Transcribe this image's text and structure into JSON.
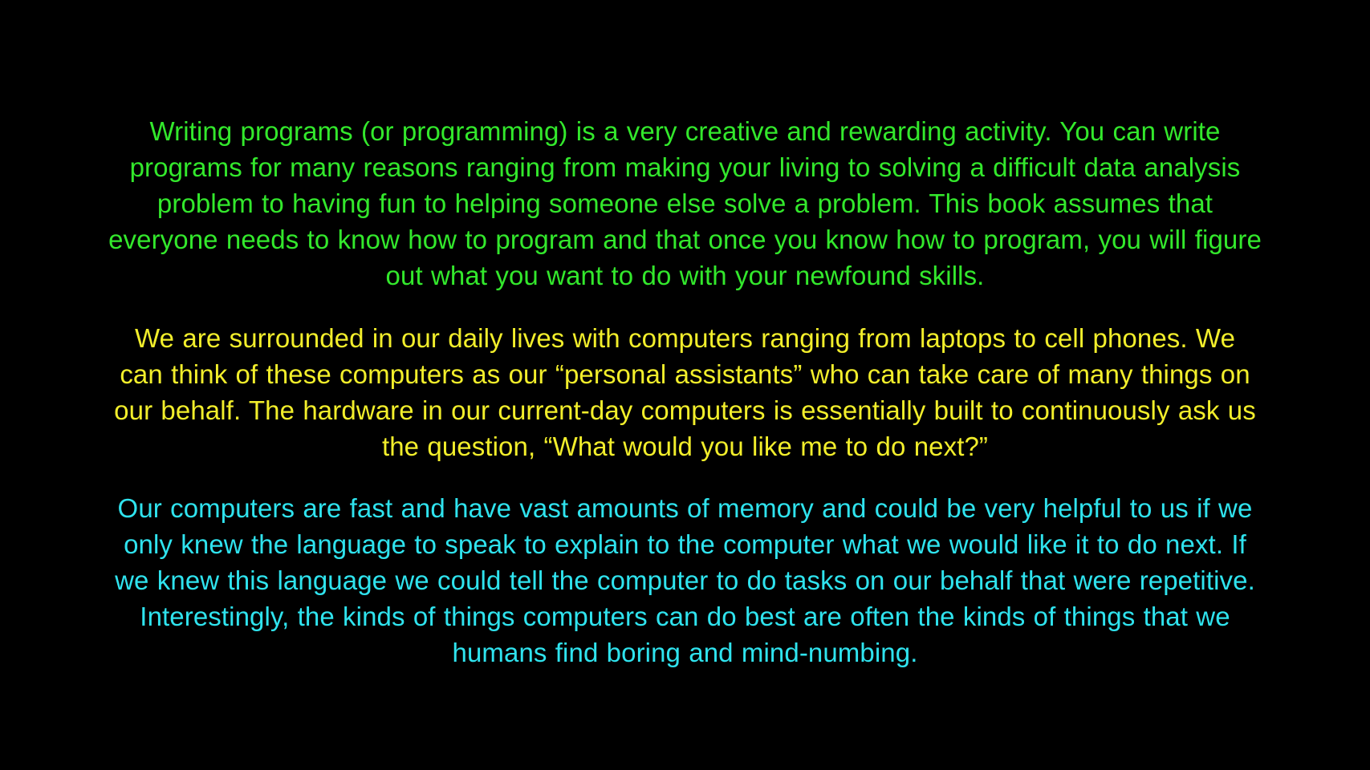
{
  "colors": {
    "background": "#000000",
    "paragraph_1": "#33e82c",
    "paragraph_2": "#f2ee2b",
    "paragraph_3": "#2fe3ee"
  },
  "paragraphs": [
    {
      "lines": [
        "Writing programs (or programming) is a very creative and rewarding activity.  You can write",
        "programs for many reasons ranging from making your living to solving a difficult data analysis",
        "problem to having fun to helping someone else solve a problem.  This book assumes that",
        "everyone needs to know how to program and that once you know how to program, you will figure",
        "out what you want to do with your newfound skills."
      ]
    },
    {
      "lines": [
        "We are surrounded in our daily lives with computers ranging from laptops to cell phones.  We",
        "can think of these computers as our “personal assistants” who can take care of many things on",
        "our behalf.  The hardware in our current-day computers is essentially built to continuously ask us",
        "the question, “What would you like me to do next?”"
      ]
    },
    {
      "lines": [
        "Our computers are fast and have vast amounts of memory and could be very helpful to us if we",
        "only knew the language to speak to explain to the computer what we would like it to do next.  If",
        "we knew this language we could tell the computer to do tasks on our behalf that were repetitive.",
        "Interestingly, the kinds of things computers can do best are often the kinds of things that we",
        "humans find boring and mind-numbing."
      ]
    }
  ]
}
